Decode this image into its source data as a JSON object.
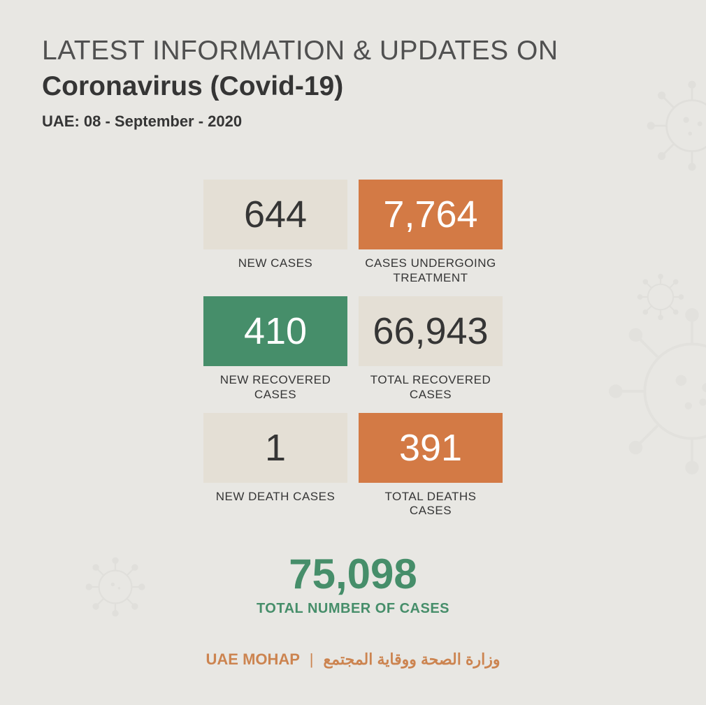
{
  "header": {
    "line1": "LATEST INFORMATION & UPDATES ON",
    "line2": "Coronavirus (Covid-19)",
    "date": "UAE: 08 - September - 2020"
  },
  "colors": {
    "background": "#e8e7e3",
    "light_box": "#e4dfd5",
    "orange_box": "#d37a45",
    "green_box": "#468e6a",
    "text_dark": "#353535",
    "text_light": "#ffffff",
    "total_green": "#468e6a",
    "footer_orange": "#cc8450"
  },
  "stats": [
    {
      "value": "644",
      "label": "NEW CASES",
      "box_color": "#e4dfd5",
      "value_color": "#353535"
    },
    {
      "value": "7,764",
      "label": "CASES UNDERGOING\nTREATMENT",
      "box_color": "#d37a45",
      "value_color": "#ffffff"
    },
    {
      "value": "410",
      "label": "NEW RECOVERED\nCASES",
      "box_color": "#468e6a",
      "value_color": "#ffffff"
    },
    {
      "value": "66,943",
      "label": "TOTAL RECOVERED\nCASES",
      "box_color": "#e4dfd5",
      "value_color": "#353535"
    },
    {
      "value": "1",
      "label": "NEW DEATH CASES",
      "box_color": "#e4dfd5",
      "value_color": "#353535"
    },
    {
      "value": "391",
      "label": "TOTAL DEATHS\nCASES",
      "box_color": "#d37a45",
      "value_color": "#ffffff"
    }
  ],
  "total": {
    "value": "75,098",
    "label": "TOTAL NUMBER OF CASES"
  },
  "footer": {
    "left": "UAE MOHAP",
    "separator": "|",
    "right": "وزارة الصحة ووقاية المجتمع"
  }
}
